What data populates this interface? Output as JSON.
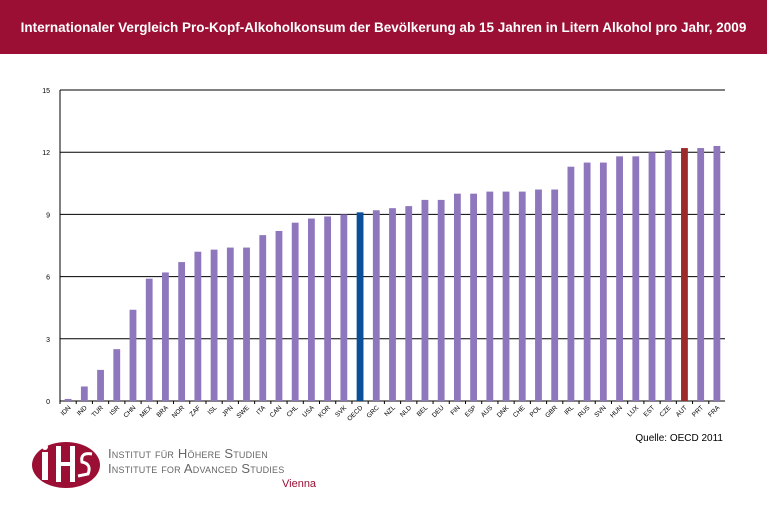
{
  "header": {
    "title": "Internationaler Vergleich Pro-Kopf-Alkoholkonsum der Bevölkerung ab 15 Jahren in Litern Alkohol pro Jahr, 2009"
  },
  "source": "Quelle: OECD 2011",
  "logo": {
    "abbr": "IHS",
    "line1": "Institut für Höhere Studien",
    "line2": "Institute for Advanced Studies",
    "city": "Vienna"
  },
  "colors": {
    "header": "#9a0f33",
    "bar": "#8e77bd",
    "oecd": "#0b4f98",
    "austria": "#9b2b2b"
  },
  "chart_data": {
    "type": "bar",
    "title": "Internationaler Vergleich Pro-Kopf-Alkoholkonsum der Bevölkerung ab 15 Jahren in Litern Alkohol pro Jahr, 2009",
    "xlabel": "",
    "ylabel": "",
    "ylim": [
      0,
      15
    ],
    "yticks": [
      0,
      3,
      6,
      9,
      12,
      15
    ],
    "grid": true,
    "categories": [
      "IDN",
      "IND",
      "TUR",
      "ISR",
      "CHN",
      "MEX",
      "BRA",
      "NOR",
      "ZAF",
      "ISL",
      "JPN",
      "SWE",
      "ITA",
      "CAN",
      "CHL",
      "USA",
      "KOR",
      "SVK",
      "OECD",
      "GRC",
      "NZL",
      "NLD",
      "BEL",
      "DEU",
      "FIN",
      "ESP",
      "AUS",
      "DNK",
      "CHE",
      "POL",
      "GBR",
      "IRL",
      "RUS",
      "SVN",
      "HUN",
      "LUX",
      "EST",
      "CZE",
      "AUT",
      "PRT",
      "FRA"
    ],
    "values": [
      0.1,
      0.7,
      1.5,
      2.5,
      4.4,
      5.9,
      6.2,
      6.7,
      7.2,
      7.3,
      7.4,
      7.4,
      8.0,
      8.2,
      8.6,
      8.8,
      8.9,
      9.0,
      9.1,
      9.2,
      9.3,
      9.4,
      9.7,
      9.7,
      10.0,
      10.0,
      10.1,
      10.1,
      10.1,
      10.2,
      10.2,
      11.3,
      11.5,
      11.5,
      11.8,
      11.8,
      12.0,
      12.1,
      12.2,
      12.2,
      12.3
    ],
    "highlight": {
      "OECD": "oecd",
      "AUT": "austria"
    }
  }
}
